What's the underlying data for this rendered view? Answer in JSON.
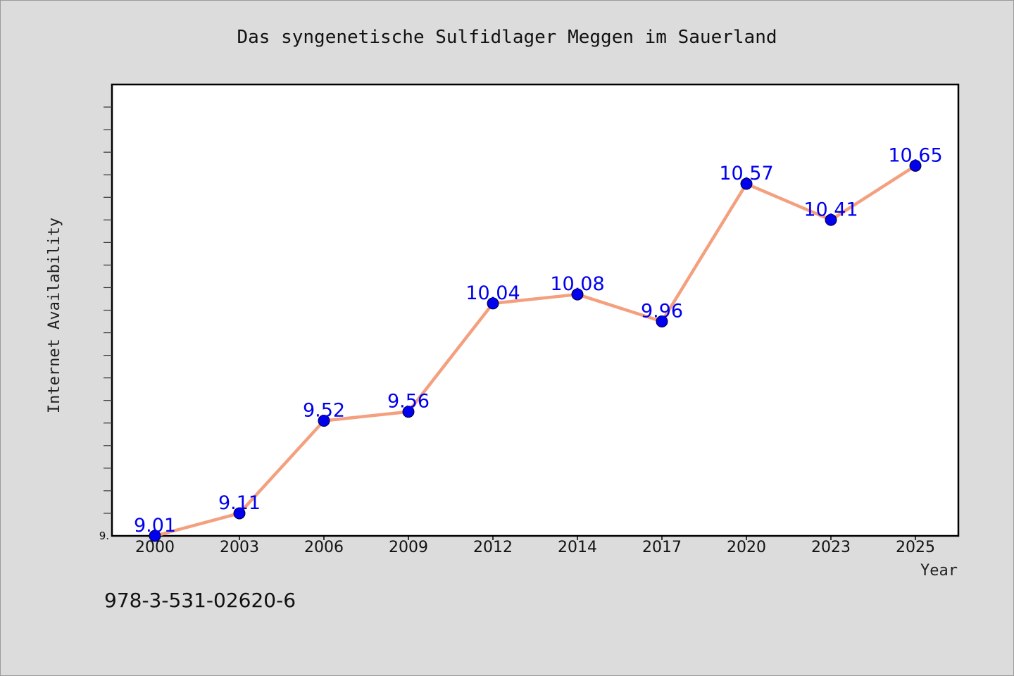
{
  "colors": {
    "background": "#dcdcdc",
    "plot_background": "#ffffff",
    "line": "#f4a07f",
    "marker": "#0000ee",
    "data_label": "#0000ee"
  },
  "footnote": "978-3-531-02620-6",
  "chart_data": {
    "type": "line",
    "title": "Das syngenetische Sulfidlager Meggen im Sauerland",
    "xlabel": "Year",
    "ylabel": "Internet Availability",
    "categories": [
      "2000",
      "2003",
      "2006",
      "2009",
      "2012",
      "2014",
      "2017",
      "2020",
      "2023",
      "2025"
    ],
    "series": [
      {
        "values": [
          9.01,
          9.11,
          9.52,
          9.56,
          10.04,
          10.08,
          9.96,
          10.57,
          10.41,
          10.65
        ],
        "labels": [
          "9.01",
          "9.11",
          "9.52",
          "9.56",
          "10.04",
          "10.08",
          "9.96",
          "10.57",
          "10.41",
          "10.65"
        ]
      }
    ],
    "y_tick_labels": [
      "9."
    ],
    "ylim": [
      9.01,
      11.01
    ],
    "y_minor_step": 0.1,
    "grid": false,
    "legend": "none"
  }
}
